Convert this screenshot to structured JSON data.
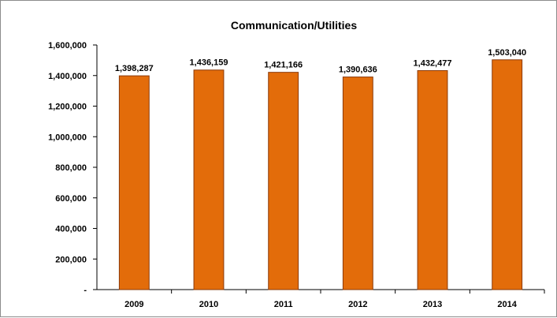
{
  "chart_data": {
    "type": "bar",
    "title": "Communication/Utilities",
    "categories": [
      "2009",
      "2010",
      "2011",
      "2012",
      "2013",
      "2014"
    ],
    "values": [
      1398287,
      1436159,
      1421166,
      1390636,
      1432477,
      1503040
    ],
    "data_labels": [
      "1,398,287",
      "1,436,159",
      "1,421,166",
      "1,390,636",
      "1,432,477",
      "1,503,040"
    ],
    "y_ticks": [
      0,
      200000,
      400000,
      600000,
      800000,
      1000000,
      1200000,
      1400000,
      1600000
    ],
    "y_tick_labels": [
      "-",
      "200,000",
      "400,000",
      "600,000",
      "800,000",
      "1,000,000",
      "1,200,000",
      "1,400,000",
      "1,600,000"
    ],
    "ylim": [
      0,
      1600000
    ],
    "xlabel": "",
    "ylabel": "",
    "grid": false,
    "legend": "none",
    "bar_color": "#E36C0A",
    "bar_border_color": "#8B3A0A"
  }
}
